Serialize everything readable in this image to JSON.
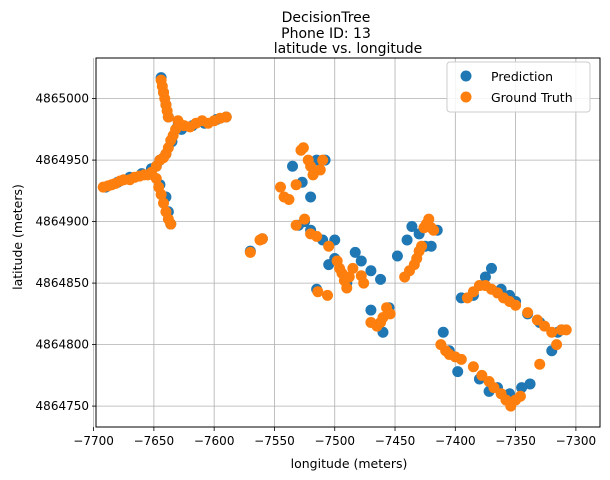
{
  "chart_data": {
    "type": "scatter",
    "title_lines": [
      "DecisionTree",
      "Phone ID: 13",
      "latitude vs. longitude"
    ],
    "xlabel": "longitude (meters)",
    "ylabel": "latitude (meters)",
    "xlim": [
      -7698,
      -7280
    ],
    "ylim": [
      4864733,
      4865033
    ],
    "xticks": [
      -7700,
      -7650,
      -7600,
      -7550,
      -7500,
      -7450,
      -7400,
      -7350,
      -7300
    ],
    "yticks": [
      4864750,
      4864800,
      4864850,
      4864900,
      4864950,
      4865000
    ],
    "grid": true,
    "legend_position": "top-right",
    "series": [
      {
        "name": "Prediction",
        "color": "#1f77b4",
        "points": [
          [
            -7690,
            4864928
          ],
          [
            -7680,
            4864932
          ],
          [
            -7670,
            4864936
          ],
          [
            -7660,
            4864939
          ],
          [
            -7652,
            4864943
          ],
          [
            -7645,
            4864950
          ],
          [
            -7640,
            4864955
          ],
          [
            -7635,
            4864965
          ],
          [
            -7630,
            4864978
          ],
          [
            -7644,
            4865017
          ],
          [
            -7642,
            4865005
          ],
          [
            -7640,
            4864995
          ],
          [
            -7638,
            4864985
          ],
          [
            -7627,
            4864975
          ],
          [
            -7618,
            4864978
          ],
          [
            -7608,
            4864980
          ],
          [
            -7598,
            4864983
          ],
          [
            -7590,
            4864985
          ],
          [
            -7648,
            4864945
          ],
          [
            -7645,
            4864930
          ],
          [
            -7640,
            4864920
          ],
          [
            -7638,
            4864908
          ],
          [
            -7636,
            4864898
          ],
          [
            -7570,
            4864876
          ],
          [
            -7560,
            4864886
          ],
          [
            -7535,
            4864945
          ],
          [
            -7527,
            4864932
          ],
          [
            -7520,
            4864920
          ],
          [
            -7515,
            4864950
          ],
          [
            -7508,
            4864950
          ],
          [
            -7530,
            4864897
          ],
          [
            -7525,
            4864900
          ],
          [
            -7520,
            4864893
          ],
          [
            -7510,
            4864885
          ],
          [
            -7500,
            4864885
          ],
          [
            -7515,
            4864845
          ],
          [
            -7505,
            4864865
          ],
          [
            -7500,
            4864870
          ],
          [
            -7490,
            4864850
          ],
          [
            -7483,
            4864875
          ],
          [
            -7478,
            4864868
          ],
          [
            -7470,
            4864860
          ],
          [
            -7462,
            4864853
          ],
          [
            -7460,
            4864810
          ],
          [
            -7455,
            4864830
          ],
          [
            -7470,
            4864828
          ],
          [
            -7448,
            4864872
          ],
          [
            -7440,
            4864885
          ],
          [
            -7436,
            4864896
          ],
          [
            -7430,
            4864890
          ],
          [
            -7425,
            4864880
          ],
          [
            -7420,
            4864880
          ],
          [
            -7415,
            4864893
          ],
          [
            -7410,
            4864810
          ],
          [
            -7405,
            4864795
          ],
          [
            -7398,
            4864778
          ],
          [
            -7395,
            4864838
          ],
          [
            -7385,
            4864840
          ],
          [
            -7375,
            4864855
          ],
          [
            -7370,
            4864862
          ],
          [
            -7362,
            4864845
          ],
          [
            -7355,
            4864840
          ],
          [
            -7350,
            4864835
          ],
          [
            -7340,
            4864825
          ],
          [
            -7330,
            4864818
          ],
          [
            -7320,
            4864795
          ],
          [
            -7315,
            4864810
          ],
          [
            -7312,
            4864812
          ],
          [
            -7380,
            4864772
          ],
          [
            -7372,
            4864762
          ],
          [
            -7365,
            4864765
          ],
          [
            -7355,
            4864760
          ],
          [
            -7345,
            4864765
          ],
          [
            -7338,
            4864768
          ]
        ]
      },
      {
        "name": "Ground Truth",
        "color": "#ff7f0e",
        "points": [
          [
            -7692,
            4864928
          ],
          [
            -7688,
            4864929
          ],
          [
            -7685,
            4864930
          ],
          [
            -7682,
            4864931
          ],
          [
            -7678,
            4864933
          ],
          [
            -7675,
            4864934
          ],
          [
            -7670,
            4864934
          ],
          [
            -7666,
            4864936
          ],
          [
            -7662,
            4864937
          ],
          [
            -7658,
            4864938
          ],
          [
            -7655,
            4864938
          ],
          [
            -7652,
            4864940
          ],
          [
            -7648,
            4864945
          ],
          [
            -7645,
            4864950
          ],
          [
            -7642,
            4864952
          ],
          [
            -7640,
            4864955
          ],
          [
            -7638,
            4864960
          ],
          [
            -7636,
            4864966
          ],
          [
            -7634,
            4864970
          ],
          [
            -7632,
            4864975
          ],
          [
            -7644,
            4865015
          ],
          [
            -7643,
            4865010
          ],
          [
            -7642,
            4865005
          ],
          [
            -7641,
            4865000
          ],
          [
            -7640,
            4864995
          ],
          [
            -7639,
            4864990
          ],
          [
            -7638,
            4864985
          ],
          [
            -7630,
            4864982
          ],
          [
            -7625,
            4864978
          ],
          [
            -7620,
            4864977
          ],
          [
            -7615,
            4864980
          ],
          [
            -7610,
            4864982
          ],
          [
            -7605,
            4864980
          ],
          [
            -7600,
            4864982
          ],
          [
            -7595,
            4864984
          ],
          [
            -7590,
            4864985
          ],
          [
            -7648,
            4864935
          ],
          [
            -7646,
            4864928
          ],
          [
            -7644,
            4864922
          ],
          [
            -7642,
            4864915
          ],
          [
            -7640,
            4864908
          ],
          [
            -7638,
            4864902
          ],
          [
            -7636,
            4864898
          ],
          [
            -7570,
            4864875
          ],
          [
            -7562,
            4864885
          ],
          [
            -7560,
            4864886
          ],
          [
            -7545,
            4864928
          ],
          [
            -7542,
            4864920
          ],
          [
            -7538,
            4864918
          ],
          [
            -7532,
            4864930
          ],
          [
            -7528,
            4864958
          ],
          [
            -7526,
            4864960
          ],
          [
            -7522,
            4864950
          ],
          [
            -7520,
            4864945
          ],
          [
            -7518,
            4864938
          ],
          [
            -7512,
            4864942
          ],
          [
            -7510,
            4864950
          ],
          [
            -7532,
            4864897
          ],
          [
            -7525,
            4864902
          ],
          [
            -7520,
            4864890
          ],
          [
            -7515,
            4864888
          ],
          [
            -7505,
            4864880
          ],
          [
            -7498,
            4864868
          ],
          [
            -7496,
            4864862
          ],
          [
            -7494,
            4864858
          ],
          [
            -7492,
            4864852
          ],
          [
            -7490,
            4864846
          ],
          [
            -7488,
            4864855
          ],
          [
            -7485,
            4864862
          ],
          [
            -7478,
            4864856
          ],
          [
            -7476,
            4864850
          ],
          [
            -7514,
            4864843
          ],
          [
            -7506,
            4864840
          ],
          [
            -7470,
            4864818
          ],
          [
            -7465,
            4864815
          ],
          [
            -7462,
            4864818
          ],
          [
            -7460,
            4864822
          ],
          [
            -7457,
            4864830
          ],
          [
            -7454,
            4864825
          ],
          [
            -7442,
            4864855
          ],
          [
            -7438,
            4864860
          ],
          [
            -7434,
            4864865
          ],
          [
            -7432,
            4864870
          ],
          [
            -7430,
            4864876
          ],
          [
            -7428,
            4864880
          ],
          [
            -7426,
            4864895
          ],
          [
            -7424,
            4864898
          ],
          [
            -7422,
            4864902
          ],
          [
            -7420,
            4864895
          ],
          [
            -7418,
            4864893
          ],
          [
            -7412,
            4864800
          ],
          [
            -7408,
            4864795
          ],
          [
            -7405,
            4864792
          ],
          [
            -7400,
            4864790
          ],
          [
            -7395,
            4864788
          ],
          [
            -7385,
            4864782
          ],
          [
            -7378,
            4864775
          ],
          [
            -7372,
            4864770
          ],
          [
            -7368,
            4864765
          ],
          [
            -7362,
            4864760
          ],
          [
            -7358,
            4864755
          ],
          [
            -7354,
            4864750
          ],
          [
            -7350,
            4864755
          ],
          [
            -7346,
            4864758
          ],
          [
            -7390,
            4864838
          ],
          [
            -7385,
            4864843
          ],
          [
            -7380,
            4864848
          ],
          [
            -7375,
            4864848
          ],
          [
            -7370,
            4864845
          ],
          [
            -7365,
            4864842
          ],
          [
            -7360,
            4864838
          ],
          [
            -7355,
            4864835
          ],
          [
            -7350,
            4864832
          ],
          [
            -7340,
            4864826
          ],
          [
            -7332,
            4864820
          ],
          [
            -7326,
            4864815
          ],
          [
            -7320,
            4864810
          ],
          [
            -7316,
            4864800
          ],
          [
            -7312,
            4864812
          ],
          [
            -7308,
            4864812
          ],
          [
            -7330,
            4864784
          ]
        ]
      }
    ]
  }
}
